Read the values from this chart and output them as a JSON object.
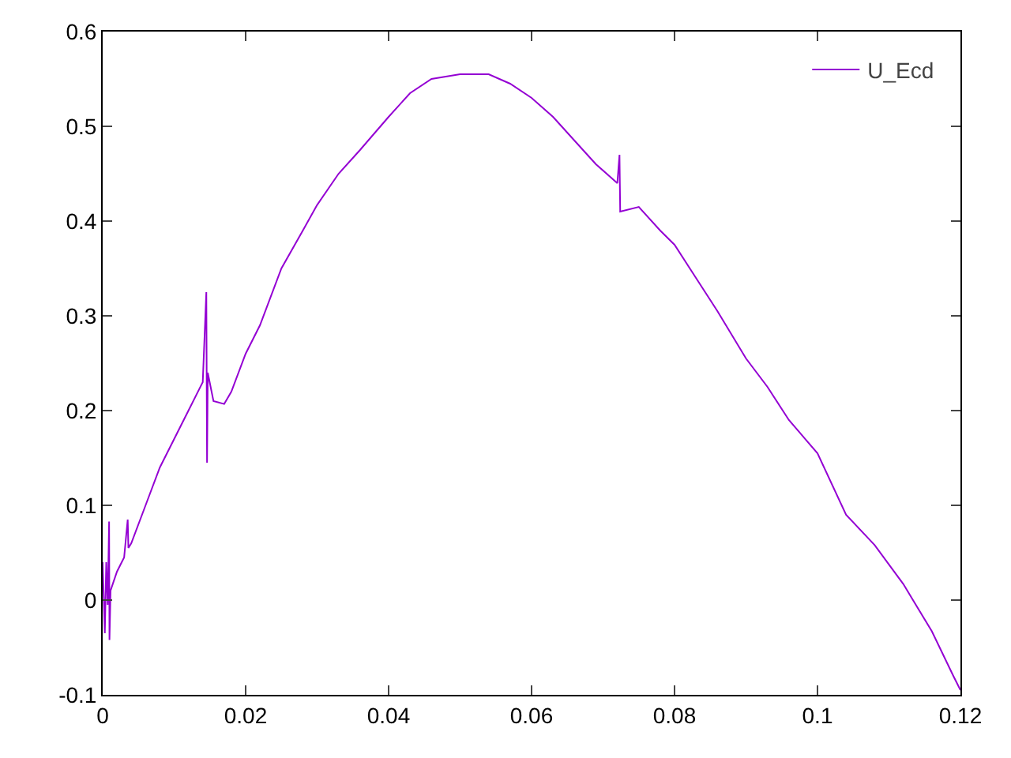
{
  "chart_data": {
    "type": "line",
    "x": [
      0,
      0.0003,
      0.0005,
      0.0007,
      0.0009,
      0.00095,
      0.0011,
      0.002,
      0.003,
      0.0035,
      0.0036,
      0.004,
      0.006,
      0.008,
      0.01,
      0.012,
      0.014,
      0.0145,
      0.0146,
      0.0147,
      0.0155,
      0.017,
      0.018,
      0.02,
      0.022,
      0.025,
      0.028,
      0.03,
      0.033,
      0.036,
      0.04,
      0.043,
      0.046,
      0.05,
      0.054,
      0.057,
      0.06,
      0.063,
      0.066,
      0.069,
      0.072,
      0.0723,
      0.0724,
      0.075,
      0.078,
      0.08,
      0.083,
      0.086,
      0.09,
      0.093,
      0.096,
      0.1,
      0.104,
      0.108,
      0.112,
      0.116,
      0.119,
      0.12
    ],
    "series": [
      {
        "name": "U_Ecd",
        "color": "#9400d3",
        "values": [
          0.04,
          -0.035,
          0.04,
          -0.005,
          0.083,
          -0.042,
          0.01,
          0.03,
          0.045,
          0.085,
          0.055,
          0.06,
          0.1,
          0.14,
          0.17,
          0.2,
          0.23,
          0.325,
          0.145,
          0.24,
          0.21,
          0.207,
          0.22,
          0.26,
          0.29,
          0.35,
          0.39,
          0.417,
          0.45,
          0.475,
          0.51,
          0.535,
          0.55,
          0.555,
          0.555,
          0.545,
          0.53,
          0.51,
          0.485,
          0.46,
          0.44,
          0.47,
          0.41,
          0.415,
          0.39,
          0.375,
          0.34,
          0.305,
          0.255,
          0.225,
          0.19,
          0.155,
          0.09,
          0.058,
          0.017,
          -0.033,
          -0.08,
          -0.095
        ]
      }
    ],
    "xlim": [
      0,
      0.12
    ],
    "xticks": [
      0,
      0.02,
      0.04,
      0.06,
      0.08,
      0.1,
      0.12
    ],
    "ylim": [
      -0.1,
      0.6
    ],
    "yticks": [
      -0.1,
      0,
      0.1,
      0.2,
      0.3,
      0.4,
      0.5,
      0.6
    ],
    "grid": false,
    "legend": "top right",
    "marker": "none",
    "line_style": "solid"
  }
}
